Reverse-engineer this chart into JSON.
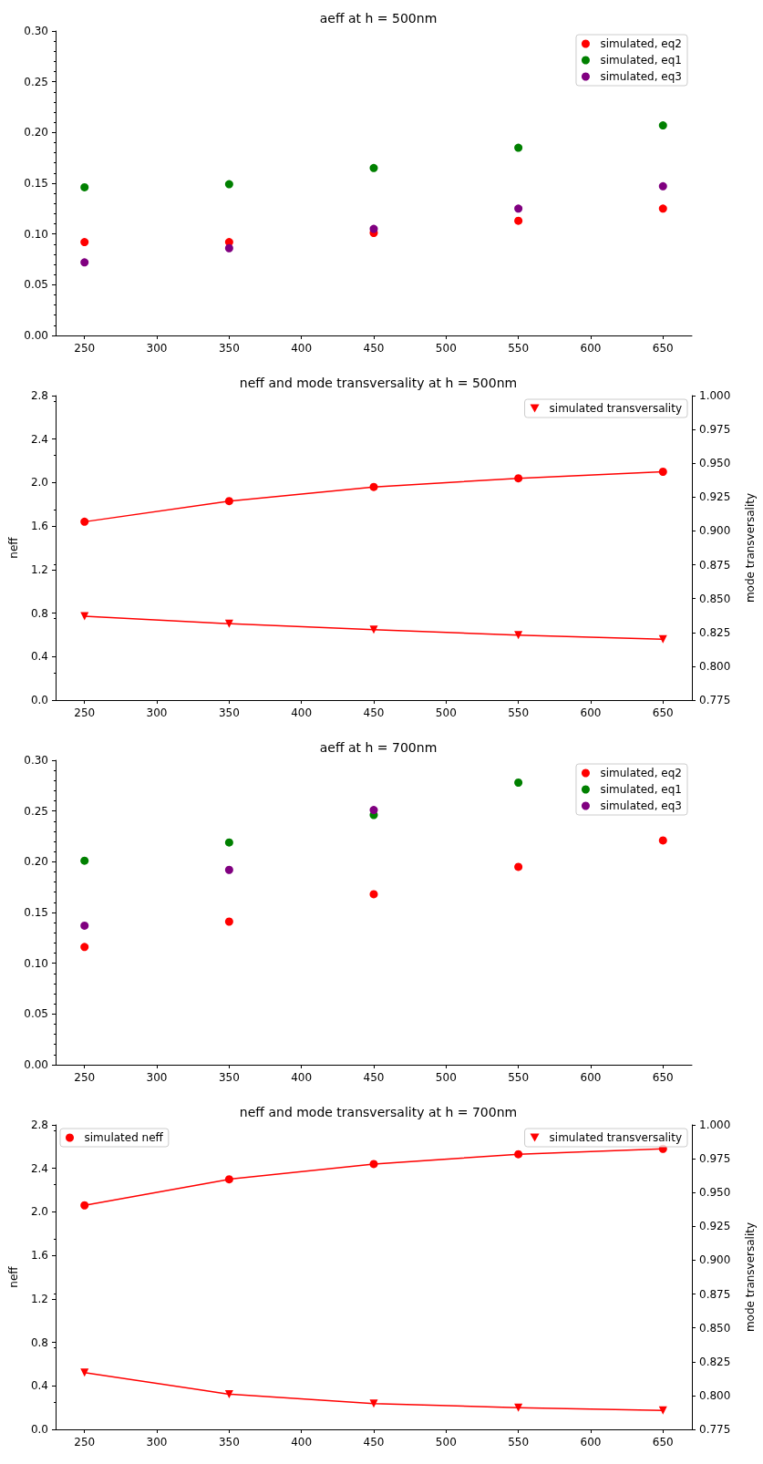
{
  "chart_data": [
    {
      "type": "scatter",
      "title": "aeff at h = 500nm",
      "x": [
        250,
        350,
        450,
        550,
        650
      ],
      "xlim": [
        230,
        670
      ],
      "xticks": [
        250,
        300,
        350,
        400,
        450,
        500,
        550,
        600,
        650
      ],
      "ylim": [
        0,
        0.3
      ],
      "yticks": [
        {
          "value": 0,
          "label": "0.00"
        },
        0.05,
        {
          "value": 0.1,
          "label": "0.10"
        },
        0.15,
        {
          "value": 0.2,
          "label": "0.20"
        },
        0.25,
        {
          "value": 0.3,
          "label": "0.30"
        }
      ],
      "grid": false,
      "legend": "top right",
      "marker": "circle",
      "series": [
        {
          "name": "simulated, eq2",
          "color": "#ff0000",
          "values": [
            0.092,
            0.092,
            0.101,
            0.113,
            0.125
          ]
        },
        {
          "name": "simulated, eq1",
          "color": "#008000",
          "values": [
            0.146,
            0.149,
            0.165,
            0.185,
            0.207
          ]
        },
        {
          "name": "simulated, eq3",
          "color": "#800080",
          "values": [
            0.072,
            0.086,
            0.105,
            0.125,
            0.147
          ]
        }
      ]
    },
    {
      "type": "line",
      "title": "neff and mode transversality at h = 500nm",
      "ylabel": "neff",
      "y2label": "mode transversality",
      "x": [
        250,
        350,
        450,
        550,
        650
      ],
      "xlim": [
        230,
        670
      ],
      "xticks": [
        250,
        300,
        350,
        400,
        450,
        500,
        550,
        600,
        650
      ],
      "ylim": [
        0,
        2.8
      ],
      "yticks": [
        {
          "value": 0,
          "label": "0.0"
        },
        0.4,
        0.8,
        1.2,
        1.6,
        {
          "value": 2,
          "label": "2.0"
        },
        2.4,
        2.8
      ],
      "y2lim": [
        0.775,
        1.0
      ],
      "y2ticks": [
        0.775,
        {
          "value": 0.8,
          "label": "0.800"
        },
        0.825,
        {
          "value": 0.85,
          "label": "0.850"
        },
        0.875,
        {
          "value": 0.9,
          "label": "0.900"
        },
        0.925,
        {
          "value": 0.95,
          "label": "0.950"
        },
        0.975,
        {
          "value": 1,
          "label": "1.000"
        }
      ],
      "grid": false,
      "legend": "top right",
      "series": [
        {
          "color": "#ff0000",
          "marker": "circle",
          "values": [
            1.64,
            1.83,
            1.96,
            2.04,
            2.1
          ]
        },
        {
          "name": "simulated transversality",
          "color": "#ff0000",
          "marker": "triangle",
          "axis": "y2",
          "values": [
            0.837,
            0.8315,
            0.827,
            0.823,
            0.82
          ]
        }
      ]
    },
    {
      "type": "scatter",
      "title": "aeff at h = 700nm",
      "x": [
        250,
        350,
        450,
        550,
        650
      ],
      "xlim": [
        230,
        670
      ],
      "xticks": [
        250,
        300,
        350,
        400,
        450,
        500,
        550,
        600,
        650
      ],
      "ylim": [
        0,
        0.3
      ],
      "yticks": [
        {
          "value": 0,
          "label": "0.00"
        },
        0.05,
        {
          "value": 0.1,
          "label": "0.10"
        },
        0.15,
        {
          "value": 0.2,
          "label": "0.20"
        },
        0.25,
        {
          "value": 0.3,
          "label": "0.30"
        }
      ],
      "grid": false,
      "legend": "top right",
      "marker": "circle",
      "series": [
        {
          "name": "simulated, eq2",
          "color": "#ff0000",
          "values": [
            0.116,
            0.141,
            0.168,
            0.195,
            0.221
          ]
        },
        {
          "name": "simulated, eq1",
          "color": "#008000",
          "values": [
            0.201,
            0.219,
            0.246,
            0.278,
            null
          ]
        },
        {
          "name": "simulated, eq3",
          "color": "#800080",
          "values": [
            0.137,
            0.192,
            0.251,
            null,
            null
          ]
        }
      ]
    },
    {
      "type": "line",
      "title": "neff and mode transversality at h = 700nm",
      "ylabel": "neff",
      "y2label": "mode transversality",
      "x": [
        250,
        350,
        450,
        550,
        650
      ],
      "xlim": [
        230,
        670
      ],
      "xticks": [
        250,
        300,
        350,
        400,
        450,
        500,
        550,
        600,
        650
      ],
      "ylim": [
        0,
        2.8
      ],
      "yticks": [
        {
          "value": 0,
          "label": "0.0"
        },
        0.4,
        0.8,
        1.2,
        1.6,
        {
          "value": 2,
          "label": "2.0"
        },
        2.4,
        2.8
      ],
      "y2lim": [
        0.775,
        1.0
      ],
      "y2ticks": [
        0.775,
        {
          "value": 0.8,
          "label": "0.800"
        },
        0.825,
        {
          "value": 0.85,
          "label": "0.850"
        },
        0.875,
        {
          "value": 0.9,
          "label": "0.900"
        },
        0.925,
        {
          "value": 0.95,
          "label": "0.950"
        },
        0.975,
        {
          "value": 1,
          "label": "1.000"
        }
      ],
      "grid": false,
      "legend": "top",
      "series": [
        {
          "name": "simulated neff",
          "color": "#ff0000",
          "marker": "circle",
          "values": [
            2.06,
            2.3,
            2.44,
            2.53,
            2.58
          ]
        },
        {
          "name": "simulated transversality",
          "color": "#ff0000",
          "marker": "triangle",
          "axis": "y2",
          "values": [
            0.817,
            0.801,
            0.794,
            0.791,
            0.789
          ]
        }
      ]
    }
  ]
}
